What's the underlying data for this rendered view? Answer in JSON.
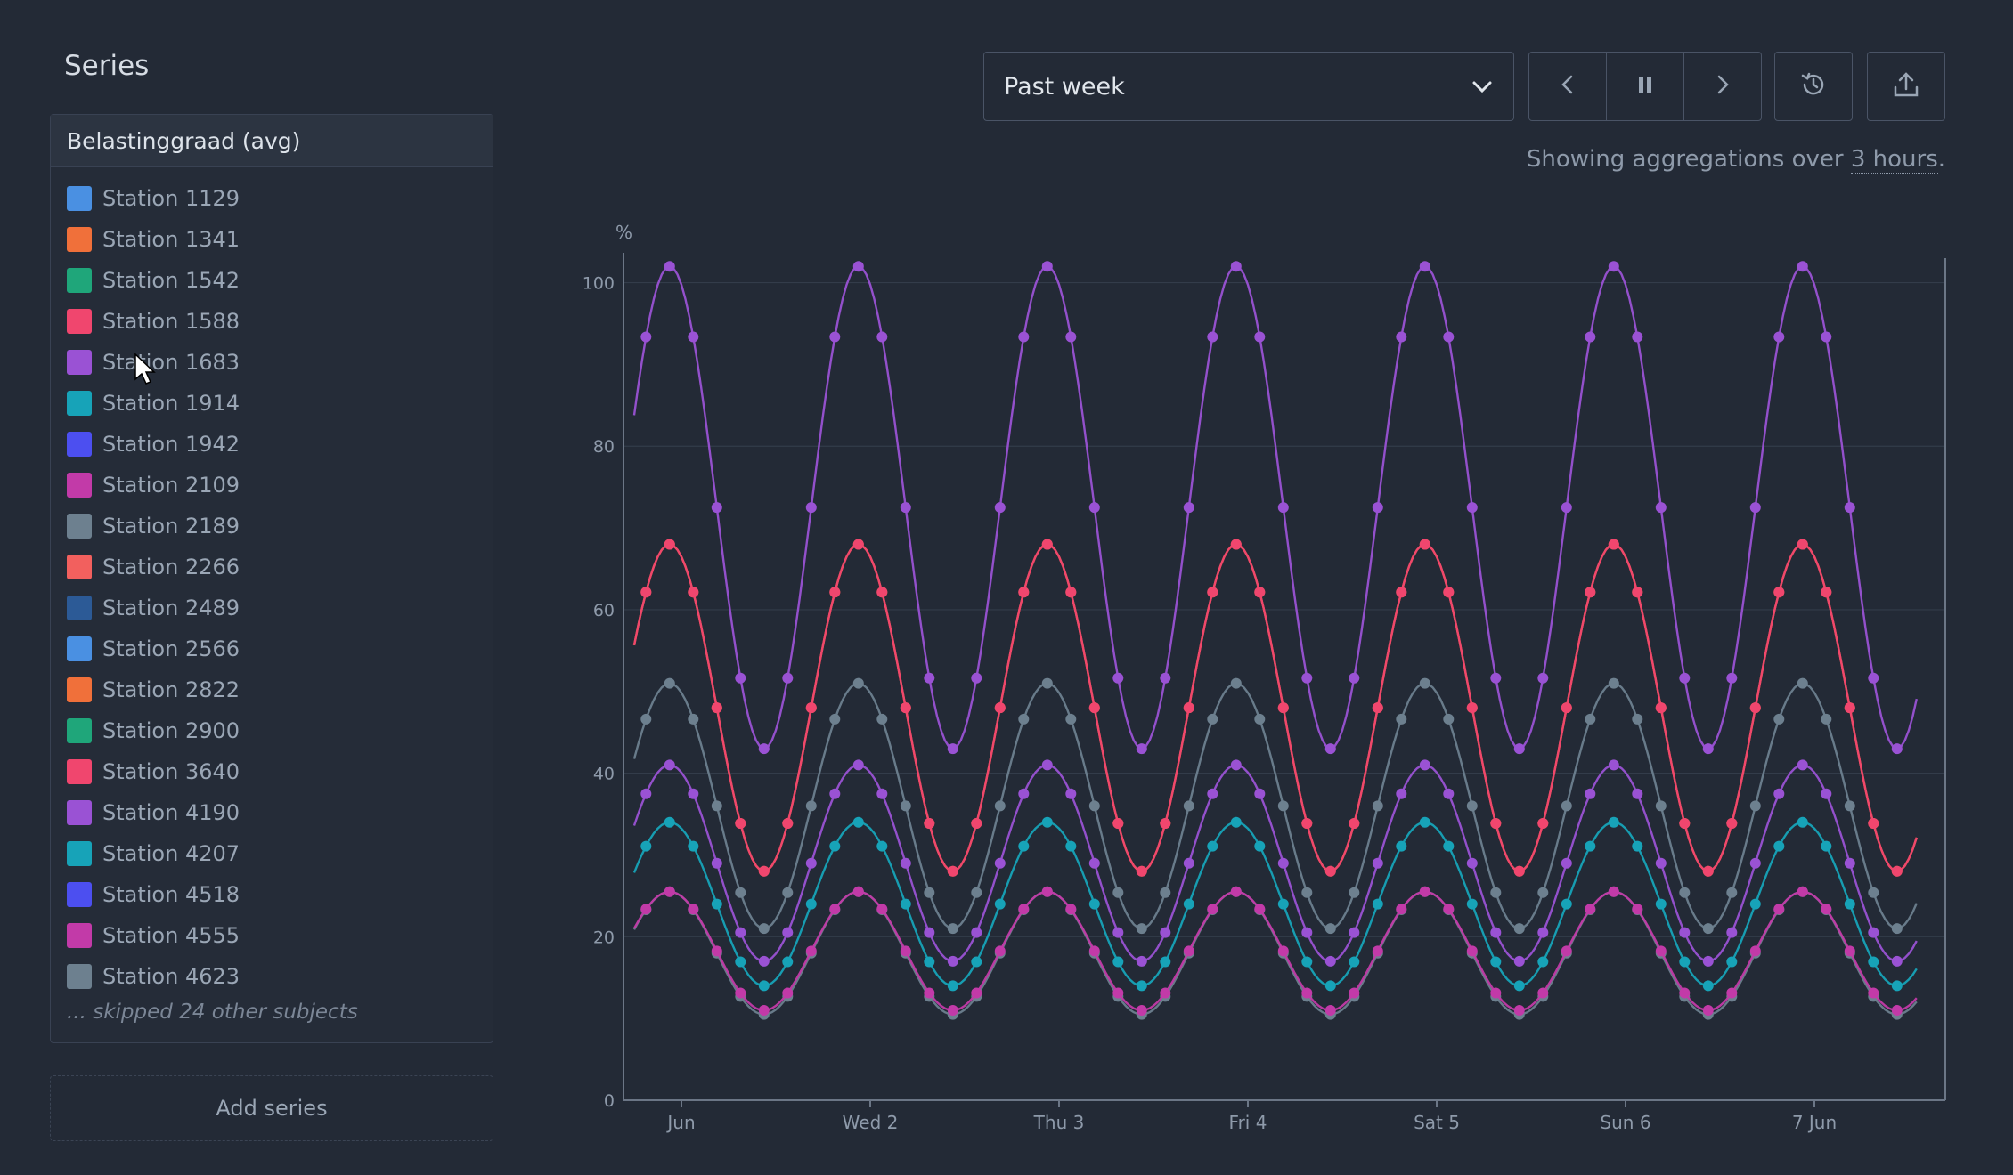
{
  "sidebar": {
    "title": "Series",
    "group_header": "Belastinggraad (avg)",
    "items": [
      {
        "label": "Station 1129",
        "color": "#4a90e2"
      },
      {
        "label": "Station 1341",
        "color": "#f0703a"
      },
      {
        "label": "Station 1542",
        "color": "#1fa67a"
      },
      {
        "label": "Station 1588",
        "color": "#f0466e"
      },
      {
        "label": "Station 1683",
        "color": "#9a52d4"
      },
      {
        "label": "Station 1914",
        "color": "#17a3b8"
      },
      {
        "label": "Station 1942",
        "color": "#4c4ff0"
      },
      {
        "label": "Station 2109",
        "color": "#c23aa8"
      },
      {
        "label": "Station 2189",
        "color": "#6d808f"
      },
      {
        "label": "Station 2266",
        "color": "#f2605e"
      },
      {
        "label": "Station 2489",
        "color": "#2c5a96"
      },
      {
        "label": "Station 2566",
        "color": "#4a90e2"
      },
      {
        "label": "Station 2822",
        "color": "#f0703a"
      },
      {
        "label": "Station 2900",
        "color": "#1fa67a"
      },
      {
        "label": "Station 3640",
        "color": "#f0466e"
      },
      {
        "label": "Station 4190",
        "color": "#9a52d4"
      },
      {
        "label": "Station 4207",
        "color": "#17a3b8"
      },
      {
        "label": "Station 4518",
        "color": "#4c4ff0"
      },
      {
        "label": "Station 4555",
        "color": "#c23aa8"
      },
      {
        "label": "Station 4623",
        "color": "#6d808f"
      }
    ],
    "skipped_text": "... skipped 24 other subjects",
    "add_series_label": "Add series"
  },
  "toolbar": {
    "range_value": "Past week",
    "icons": [
      "chevron-down-icon",
      "previous-icon",
      "pause-icon",
      "next-icon",
      "history-icon",
      "export-icon"
    ]
  },
  "aggregation_note": {
    "prefix": "Showing aggregations over ",
    "period": "3 hours",
    "suffix": "."
  },
  "chart_data": {
    "type": "line",
    "ylabel": "%",
    "ylim": [
      0,
      103
    ],
    "yticks": [
      0,
      20,
      40,
      60,
      80,
      100
    ],
    "xticks": [
      "Jun",
      "Wed 2",
      "Thu 3",
      "Fri 4",
      "Sat 5",
      "Sun 6",
      "7 Jun"
    ],
    "x_start_label": "Jun",
    "sample_interval": "3 hours",
    "period": "1 day",
    "grid": "horizontal",
    "series_pattern": [
      {
        "name": "Station 1683",
        "color": "#9a52d4",
        "min": 43,
        "max": 102
      },
      {
        "name": "Station 1588",
        "color": "#f0466e",
        "min": 28,
        "max": 68
      },
      {
        "name": "Station 1341",
        "color": "#f0703a",
        "min": 28,
        "max": 68
      },
      {
        "name": "Station 2189",
        "color": "#6d808f",
        "min": 21,
        "max": 51
      },
      {
        "name": "Station 4190",
        "color": "#9a52d4",
        "min": 17,
        "max": 41
      },
      {
        "name": "Station 1914",
        "color": "#17a3b8",
        "min": 14,
        "max": 34
      },
      {
        "name": "Station 2109",
        "color": "#c23aa8",
        "min": 11,
        "max": 25.5
      },
      {
        "name": "Station 4623",
        "color": "#6d808f",
        "min": 10.5,
        "max": 25.5
      }
    ],
    "day_starts_x_offset_hours": -1.5
  }
}
